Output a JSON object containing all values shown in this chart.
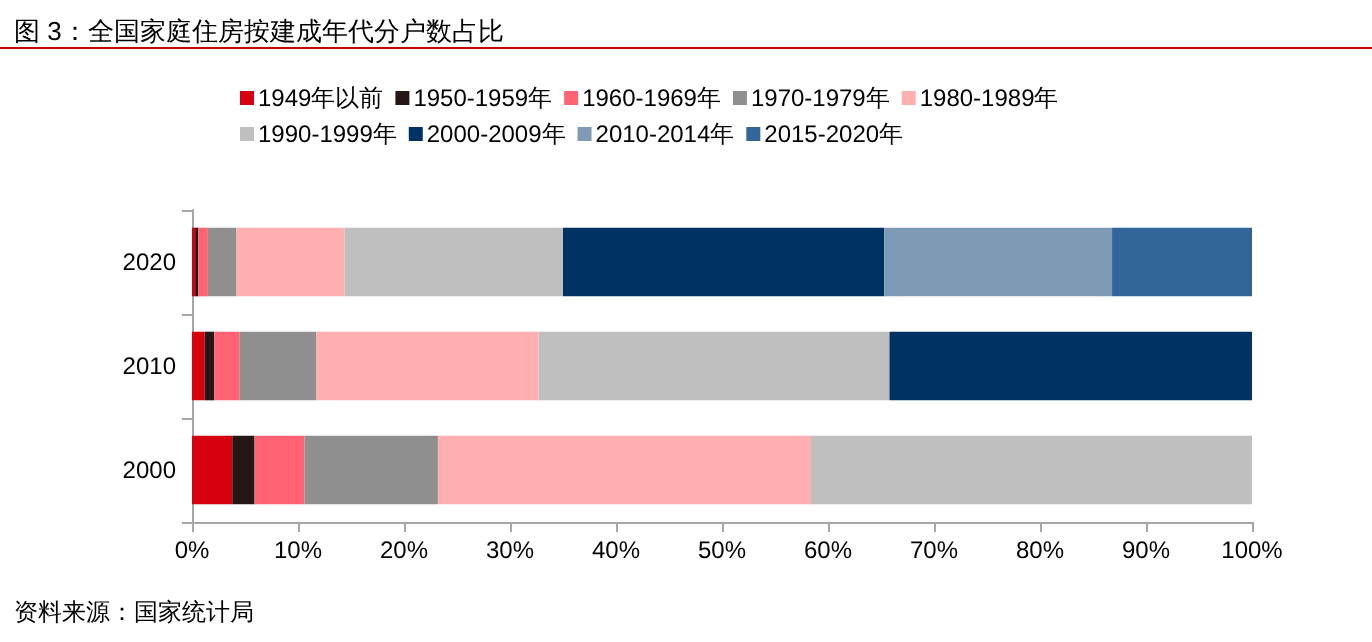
{
  "chart_data": {
    "type": "bar",
    "orientation": "horizontal",
    "stacked": true,
    "title": "图 3：全国家庭住房按建成年代分户数占比",
    "annotations": [
      "资料来源：国家统计局"
    ],
    "categories": [
      "2020",
      "2010",
      "2000"
    ],
    "series": [
      {
        "name": "1949年以前",
        "color": "#d7000f",
        "values": [
          0.3,
          1.2,
          3.8
        ]
      },
      {
        "name": "1950-1959年",
        "color": "#231815",
        "values": [
          0.3,
          0.9,
          2.1
        ]
      },
      {
        "name": "1960-1969年",
        "color": "#ff6374",
        "values": [
          0.9,
          2.4,
          4.7
        ]
      },
      {
        "name": "1970-1979年",
        "color": "#8f8f8f",
        "values": [
          2.7,
          7.2,
          12.6
        ]
      },
      {
        "name": "1980-1989年",
        "color": "#ffafaf",
        "values": [
          10.2,
          21.0,
          35.2
        ]
      },
      {
        "name": "1990-1999年",
        "color": "#bfbfbf",
        "values": [
          20.6,
          33.1,
          41.6
        ]
      },
      {
        "name": "2000-2009年",
        "color": "#003264",
        "values": [
          30.3,
          34.2,
          null
        ]
      },
      {
        "name": "2010-2014年",
        "color": "#7f9ab4",
        "values": [
          21.5,
          null,
          null
        ]
      },
      {
        "name": "2015-2020年",
        "color": "#32659a",
        "values": [
          13.2,
          null,
          null
        ]
      }
    ],
    "xlim": [
      0,
      100
    ],
    "xticks": [
      {
        "value": 0,
        "label": "0%"
      },
      {
        "value": 10,
        "label": "10%"
      },
      {
        "value": 20,
        "label": "20%"
      },
      {
        "value": 30,
        "label": "30%"
      },
      {
        "value": 40,
        "label": "40%"
      },
      {
        "value": 50,
        "label": "50%"
      },
      {
        "value": 60,
        "label": "60%"
      },
      {
        "value": 70,
        "label": "70%"
      },
      {
        "value": 80,
        "label": "80%"
      },
      {
        "value": 90,
        "label": "90%"
      },
      {
        "value": 100,
        "label": "100%"
      }
    ],
    "grid": false,
    "legend": "top"
  }
}
